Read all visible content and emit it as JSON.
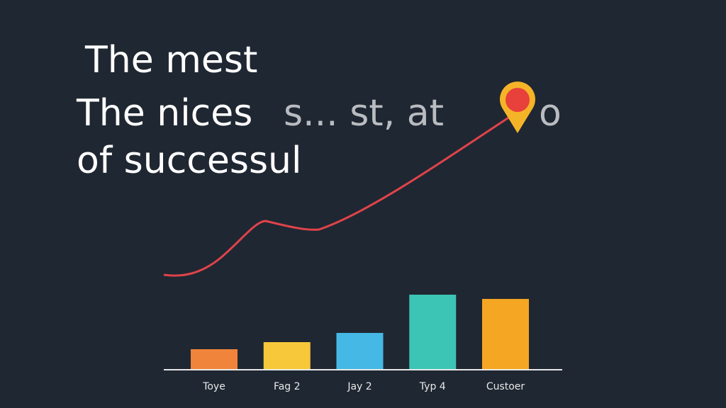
{
  "chart_data": {
    "type": "bar",
    "title_lines": [
      [
        "The mest"
      ],
      [
        "The nices",
        "s... st, at",
        "o"
      ],
      [
        "of successul"
      ]
    ],
    "categories": [
      "Toye",
      "Fag 2",
      "Jay 2",
      "Typ 4",
      "Custoer"
    ],
    "values": [
      28,
      38,
      51,
      105,
      99
    ],
    "colors": [
      "#f0843a",
      "#f6c83a",
      "#45b8e6",
      "#3cc4b4",
      "#f5a623"
    ]
  }
}
